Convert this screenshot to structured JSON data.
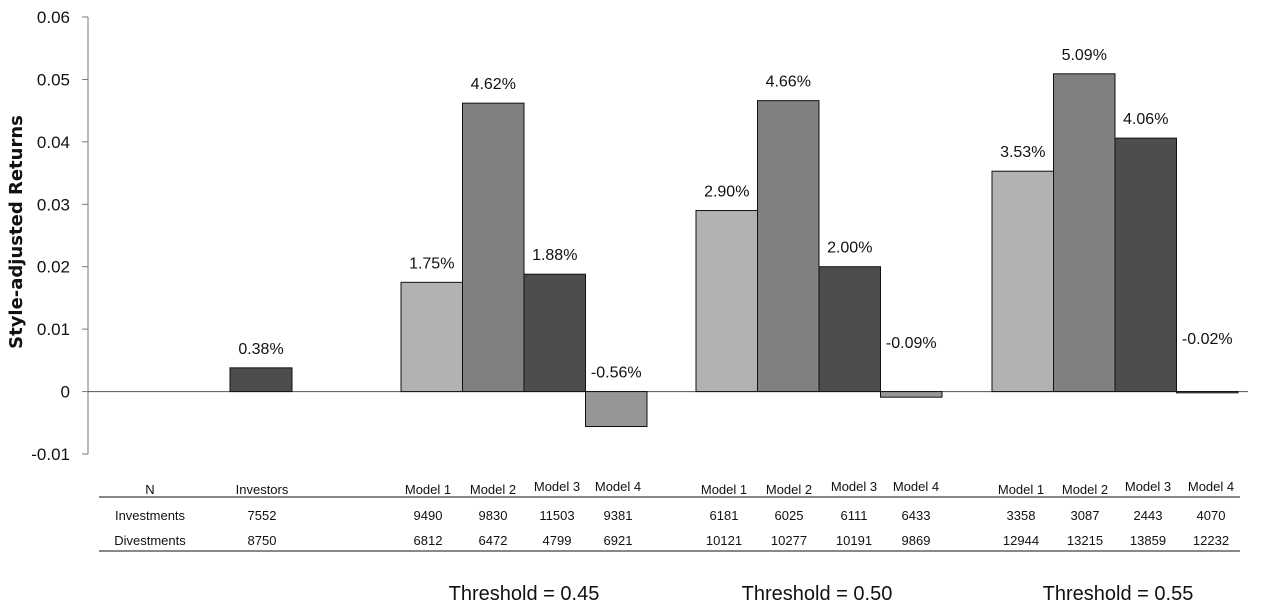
{
  "chart_data": {
    "type": "bar",
    "ylabel": "Style-adjusted Returns",
    "ylim": [
      -0.01,
      0.06
    ],
    "yticks": [
      "0.06",
      "0.05",
      "0.04",
      "0.03",
      "0.02",
      "0.01",
      "0",
      "-0.01"
    ],
    "grid": false,
    "colors": {
      "Model 1": "#b2b2b2",
      "Model 2": "#808080",
      "Model 3": "#4d4d4d",
      "Model 4": "#969696",
      "Investors": "#4d4d4d"
    },
    "bars": [
      {
        "group": "Investors",
        "series": "Investors",
        "value": 0.0038,
        "label": "0.38%"
      },
      {
        "group": "Threshold = 0.45",
        "series": "Model 1",
        "value": 0.0175,
        "label": "1.75%"
      },
      {
        "group": "Threshold = 0.45",
        "series": "Model 2",
        "value": 0.0462,
        "label": "4.62%"
      },
      {
        "group": "Threshold = 0.45",
        "series": "Model 3",
        "value": 0.0188,
        "label": "1.88%"
      },
      {
        "group": "Threshold = 0.45",
        "series": "Model 4",
        "value": -0.0056,
        "label": "-0.56%"
      },
      {
        "group": "Threshold = 0.50",
        "series": "Model 1",
        "value": 0.029,
        "label": "2.90%"
      },
      {
        "group": "Threshold = 0.50",
        "series": "Model 2",
        "value": 0.0466,
        "label": "4.66%"
      },
      {
        "group": "Threshold = 0.50",
        "series": "Model 3",
        "value": 0.02,
        "label": "2.00%"
      },
      {
        "group": "Threshold = 0.50",
        "series": "Model 4",
        "value": -0.0009,
        "label": "-0.09%"
      },
      {
        "group": "Threshold = 0.55",
        "series": "Model 1",
        "value": 0.0353,
        "label": "3.53%"
      },
      {
        "group": "Threshold = 0.55",
        "series": "Model 2",
        "value": 0.0509,
        "label": "5.09%"
      },
      {
        "group": "Threshold = 0.55",
        "series": "Model 3",
        "value": 0.0406,
        "label": "4.06%"
      },
      {
        "group": "Threshold = 0.55",
        "series": "Model 4",
        "value": -0.0002,
        "label": "-0.02%"
      }
    ],
    "table": {
      "row_headers": [
        "N",
        "Investments",
        "Divestments"
      ],
      "columns": [
        {
          "header": "Investors",
          "investments": "7552",
          "divestments": "8750"
        },
        {
          "header": "Model 1",
          "investments": "9490",
          "divestments": "6812"
        },
        {
          "header": "Model  2",
          "investments": "9830",
          "divestments": "6472"
        },
        {
          "header": "Model  3",
          "investments": "11503",
          "divestments": "4799"
        },
        {
          "header": "Model 4",
          "investments": "9381",
          "divestments": "6921"
        },
        {
          "header": "Model 1",
          "investments": "6181",
          "divestments": "10121"
        },
        {
          "header": "Model  2",
          "investments": "6025",
          "divestments": "10277"
        },
        {
          "header": "Model  3",
          "investments": "6111",
          "divestments": "10191"
        },
        {
          "header": "Model 4",
          "investments": "6433",
          "divestments": "9869"
        },
        {
          "header": "Model 1",
          "investments": "3358",
          "divestments": "12944"
        },
        {
          "header": "Model  2",
          "investments": "3087",
          "divestments": "13215"
        },
        {
          "header": "Model  3",
          "investments": "2443",
          "divestments": "13859"
        },
        {
          "header": "Model 4",
          "investments": "4070",
          "divestments": "12232"
        }
      ]
    },
    "group_labels": [
      "Threshold = 0.45",
      "Threshold = 0.50",
      "Threshold = 0.55"
    ]
  }
}
